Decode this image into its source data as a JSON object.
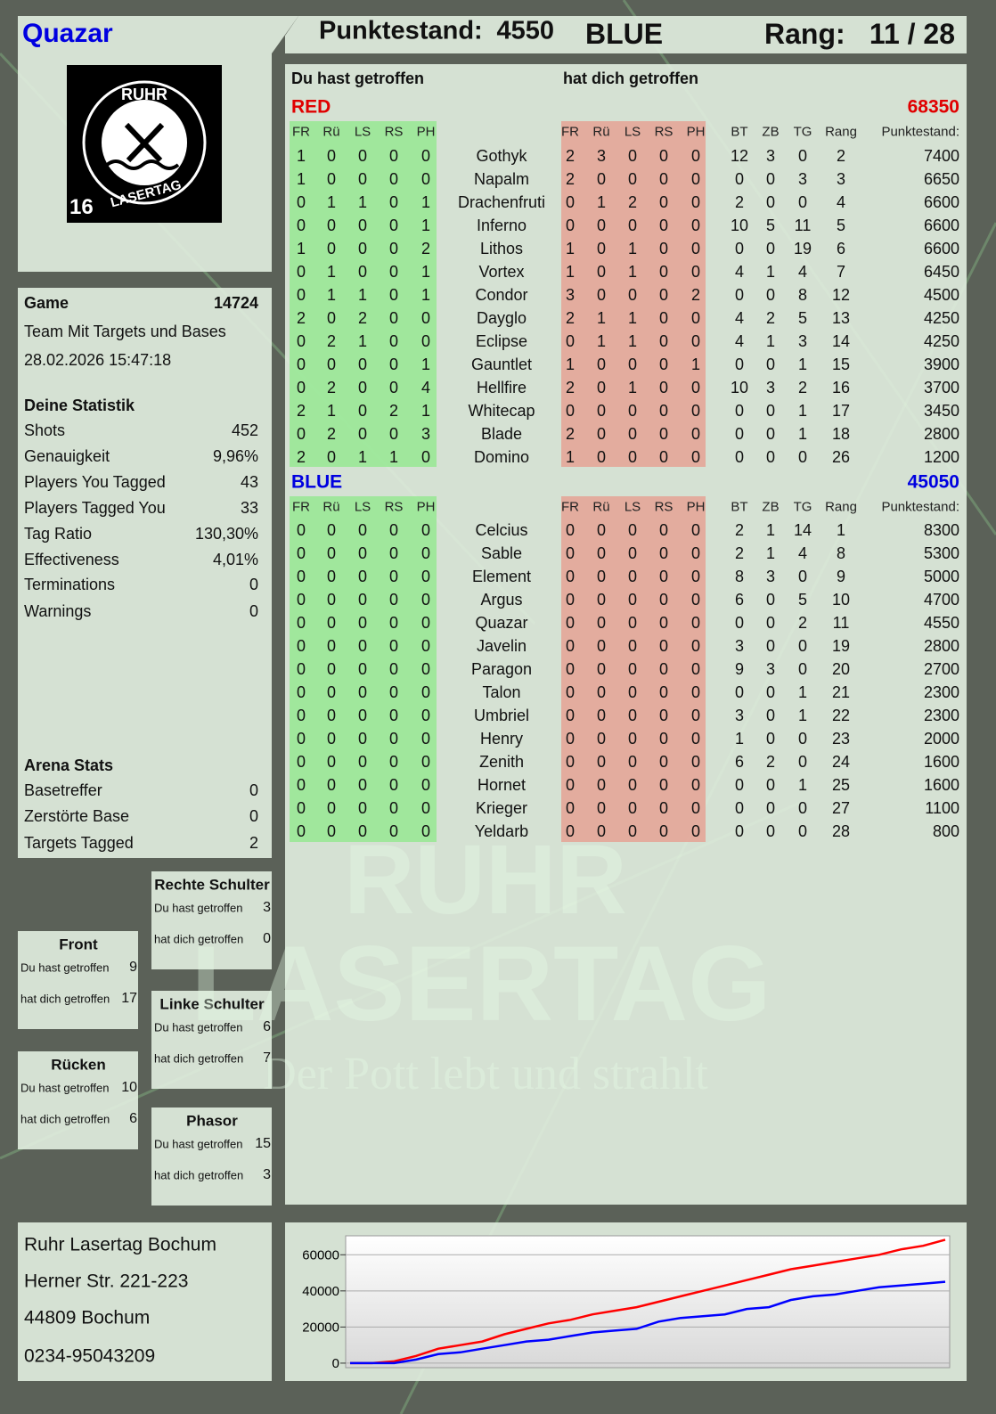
{
  "header": {
    "player": "Quazar",
    "score_label": "Punktestand:",
    "score": 4550,
    "team": "BLUE",
    "rank_label": "Rang:",
    "rank": "11 / 28"
  },
  "logo": {
    "top": "RUHR",
    "bottom": "LASERTAG",
    "age": "16"
  },
  "watermark": {
    "line1": "RUHR",
    "line2": "LASERTAG",
    "tagline": "Der Pott lebt und strahlt"
  },
  "game": {
    "label": "Game",
    "id": 14724,
    "mode": "Team Mit Targets und Bases",
    "date": "28.02.2026 15:47:18"
  },
  "statistics": {
    "title": "Deine Statistik",
    "rows": [
      [
        "Shots",
        452
      ],
      [
        "Genauigkeit",
        "9,96%"
      ],
      [
        "Players You Tagged",
        43
      ],
      [
        "Players Tagged You",
        33
      ],
      [
        "Tag Ratio",
        "130,30%"
      ],
      [
        "Effectiveness",
        "4,01%"
      ],
      [
        "Terminations",
        0
      ],
      [
        "Warnings",
        0
      ]
    ]
  },
  "arena": {
    "title": "Arena Stats",
    "rows": [
      [
        "Basetreffer",
        0
      ],
      [
        "Zerstörte Base",
        0
      ],
      [
        "Targets Tagged",
        2
      ]
    ]
  },
  "hit_zones": [
    {
      "title": "Rechte Schulter",
      "rows": [
        [
          "Du hast getroffen",
          3
        ],
        [
          "hat dich getroffen",
          0
        ]
      ]
    },
    {
      "title": "Front",
      "rows": [
        [
          "Du hast getroffen",
          9
        ],
        [
          "hat dich getroffen",
          17
        ]
      ]
    },
    {
      "title": "Linke Schulter",
      "rows": [
        [
          "Du hast getroffen",
          6
        ],
        [
          "hat dich getroffen",
          7
        ]
      ]
    },
    {
      "title": "Rücken",
      "rows": [
        [
          "Du hast getroffen",
          10
        ],
        [
          "hat dich getroffen",
          6
        ]
      ]
    },
    {
      "title": "Phasor",
      "rows": [
        [
          "Du hast getroffen",
          15
        ],
        [
          "hat dich getroffen",
          3
        ]
      ]
    }
  ],
  "address": [
    "Ruhr Lasertag Bochum",
    "Herner Str. 221-223",
    "44809 Bochum",
    "0234-95043209"
  ],
  "table": {
    "left_heading": "Du hast getroffen",
    "right_heading": "hat dich getroffen",
    "columns": [
      "FR",
      "Rü",
      "LS",
      "RS",
      "PH",
      "FR",
      "Rü",
      "LS",
      "RS",
      "PH",
      "BT",
      "ZB",
      "TG",
      "Rang",
      "Punktestand:"
    ],
    "teams": [
      {
        "name": "RED",
        "total": 68350,
        "color": "#e00000",
        "players": [
          [
            1,
            0,
            0,
            0,
            0,
            "Gothyk",
            2,
            3,
            0,
            0,
            0,
            12,
            3,
            0,
            2,
            7400
          ],
          [
            1,
            0,
            0,
            0,
            0,
            "Napalm",
            2,
            0,
            0,
            0,
            0,
            0,
            0,
            3,
            3,
            6650
          ],
          [
            0,
            1,
            1,
            0,
            1,
            "Drachenfruti",
            0,
            1,
            2,
            0,
            0,
            2,
            0,
            0,
            4,
            6600
          ],
          [
            0,
            0,
            0,
            0,
            1,
            "Inferno",
            0,
            0,
            0,
            0,
            0,
            10,
            5,
            11,
            5,
            6600
          ],
          [
            1,
            0,
            0,
            0,
            2,
            "Lithos",
            1,
            0,
            1,
            0,
            0,
            0,
            0,
            19,
            6,
            6600
          ],
          [
            0,
            1,
            0,
            0,
            1,
            "Vortex",
            1,
            0,
            1,
            0,
            0,
            4,
            1,
            4,
            7,
            6450
          ],
          [
            0,
            1,
            1,
            0,
            1,
            "Condor",
            3,
            0,
            0,
            0,
            2,
            0,
            0,
            8,
            12,
            4500
          ],
          [
            2,
            0,
            2,
            0,
            0,
            "Dayglo",
            2,
            1,
            1,
            0,
            0,
            4,
            2,
            5,
            13,
            4250
          ],
          [
            0,
            2,
            1,
            0,
            0,
            "Eclipse",
            0,
            1,
            1,
            0,
            0,
            4,
            1,
            3,
            14,
            4250
          ],
          [
            0,
            0,
            0,
            0,
            1,
            "Gauntlet",
            1,
            0,
            0,
            0,
            1,
            0,
            0,
            1,
            15,
            3900
          ],
          [
            0,
            2,
            0,
            0,
            4,
            "Hellfire",
            2,
            0,
            1,
            0,
            0,
            10,
            3,
            2,
            16,
            3700
          ],
          [
            2,
            1,
            0,
            2,
            1,
            "Whitecap",
            0,
            0,
            0,
            0,
            0,
            0,
            0,
            1,
            17,
            3450
          ],
          [
            0,
            2,
            0,
            0,
            3,
            "Blade",
            2,
            0,
            0,
            0,
            0,
            0,
            0,
            1,
            18,
            2800
          ],
          [
            2,
            0,
            1,
            1,
            0,
            "Domino",
            1,
            0,
            0,
            0,
            0,
            0,
            0,
            0,
            26,
            1200
          ]
        ]
      },
      {
        "name": "BLUE",
        "total": 45050,
        "color": "#0000e0",
        "players": [
          [
            0,
            0,
            0,
            0,
            0,
            "Celcius",
            0,
            0,
            0,
            0,
            0,
            2,
            1,
            14,
            1,
            8300
          ],
          [
            0,
            0,
            0,
            0,
            0,
            "Sable",
            0,
            0,
            0,
            0,
            0,
            2,
            1,
            4,
            8,
            5300
          ],
          [
            0,
            0,
            0,
            0,
            0,
            "Element",
            0,
            0,
            0,
            0,
            0,
            8,
            3,
            0,
            9,
            5000
          ],
          [
            0,
            0,
            0,
            0,
            0,
            "Argus",
            0,
            0,
            0,
            0,
            0,
            6,
            0,
            5,
            10,
            4700
          ],
          [
            0,
            0,
            0,
            0,
            0,
            "Quazar",
            0,
            0,
            0,
            0,
            0,
            0,
            0,
            2,
            11,
            4550
          ],
          [
            0,
            0,
            0,
            0,
            0,
            "Javelin",
            0,
            0,
            0,
            0,
            0,
            3,
            0,
            0,
            19,
            2800
          ],
          [
            0,
            0,
            0,
            0,
            0,
            "Paragon",
            0,
            0,
            0,
            0,
            0,
            9,
            3,
            0,
            20,
            2700
          ],
          [
            0,
            0,
            0,
            0,
            0,
            "Talon",
            0,
            0,
            0,
            0,
            0,
            0,
            0,
            1,
            21,
            2300
          ],
          [
            0,
            0,
            0,
            0,
            0,
            "Umbriel",
            0,
            0,
            0,
            0,
            0,
            3,
            0,
            1,
            22,
            2300
          ],
          [
            0,
            0,
            0,
            0,
            0,
            "Henry",
            0,
            0,
            0,
            0,
            0,
            1,
            0,
            0,
            23,
            2000
          ],
          [
            0,
            0,
            0,
            0,
            0,
            "Zenith",
            0,
            0,
            0,
            0,
            0,
            6,
            2,
            0,
            24,
            1600
          ],
          [
            0,
            0,
            0,
            0,
            0,
            "Hornet",
            0,
            0,
            0,
            0,
            0,
            0,
            0,
            1,
            25,
            1600
          ],
          [
            0,
            0,
            0,
            0,
            0,
            "Krieger",
            0,
            0,
            0,
            0,
            0,
            0,
            0,
            0,
            27,
            1100
          ],
          [
            0,
            0,
            0,
            0,
            0,
            "Yeldarb",
            0,
            0,
            0,
            0,
            0,
            0,
            0,
            0,
            28,
            800
          ]
        ]
      }
    ]
  },
  "chart_data": {
    "type": "line",
    "ylim": [
      -2500,
      70500
    ],
    "yticks": [
      0,
      20000,
      40000,
      60000
    ],
    "grid": true,
    "series": [
      {
        "color": "#ff0000",
        "values": [
          0,
          0,
          1000,
          4000,
          8000,
          10000,
          12000,
          16000,
          19000,
          22000,
          24000,
          27000,
          29000,
          31000,
          34000,
          37000,
          40000,
          43000,
          46000,
          49000,
          52000,
          54000,
          56000,
          58000,
          60000,
          63000,
          65000,
          68350
        ]
      },
      {
        "color": "#0000ff",
        "values": [
          0,
          0,
          0,
          2000,
          5000,
          6000,
          8000,
          10000,
          12000,
          13000,
          15000,
          17000,
          18000,
          19000,
          23000,
          25000,
          26000,
          27000,
          30000,
          31000,
          35000,
          37000,
          38000,
          40000,
          42000,
          43000,
          44000,
          45050
        ]
      }
    ]
  }
}
